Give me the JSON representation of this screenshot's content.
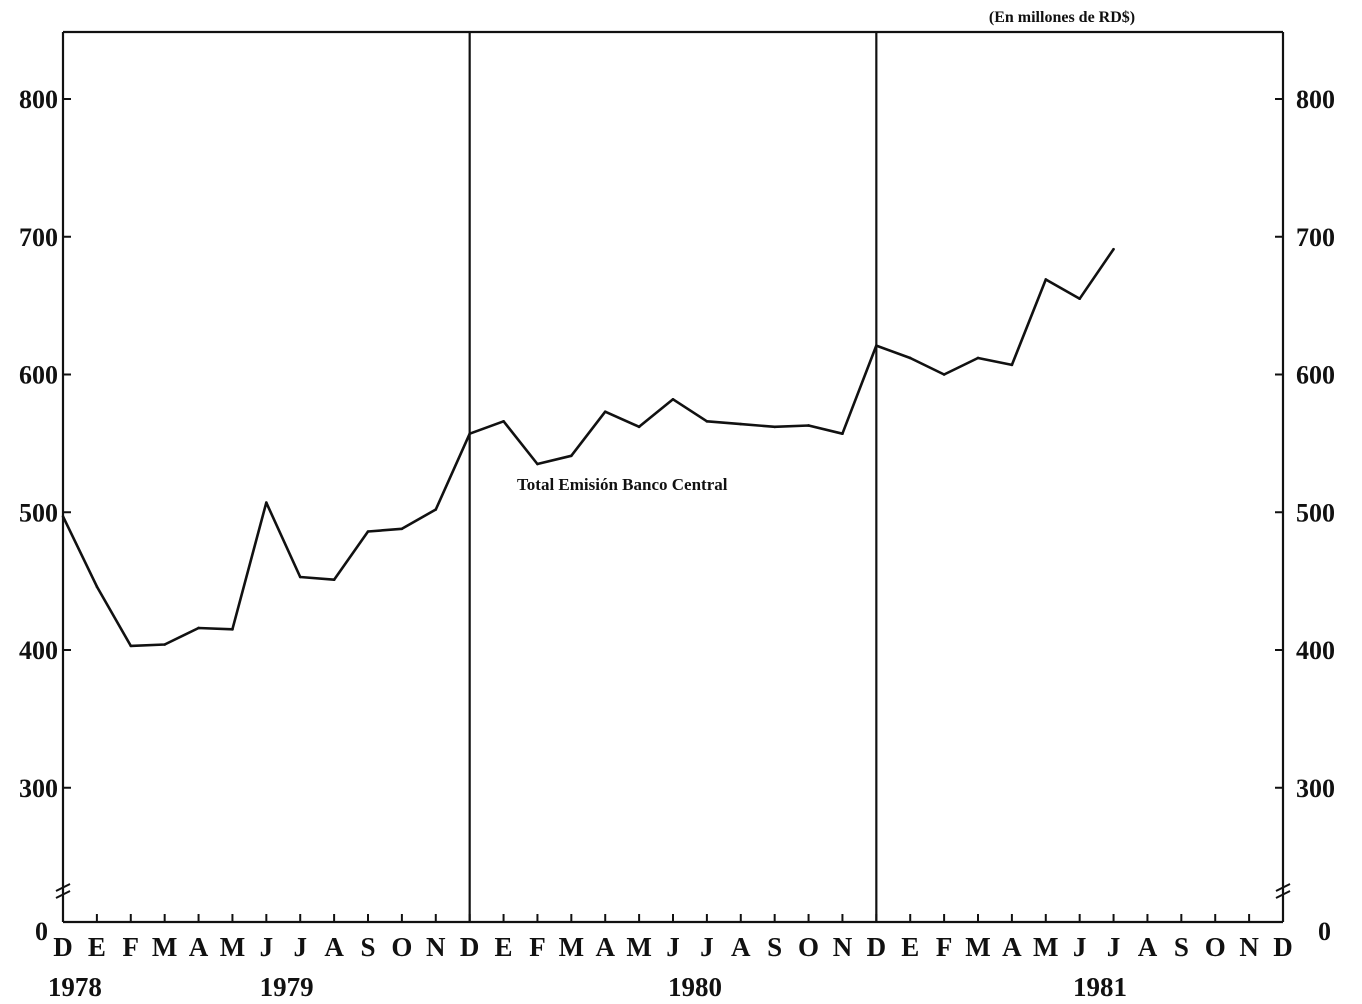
{
  "chart_data": {
    "type": "line",
    "unit_note": "(En millones de RD$)",
    "y_ticks": [
      "0",
      "300",
      "400",
      "500",
      "600",
      "700",
      "800"
    ],
    "ylim": [
      250,
      850
    ],
    "y_axis_break": true,
    "month_labels": [
      "D",
      "E",
      "F",
      "M",
      "A",
      "M",
      "J",
      "J",
      "A",
      "S",
      "O",
      "N",
      "D",
      "E",
      "F",
      "M",
      "A",
      "M",
      "J",
      "J",
      "A",
      "S",
      "O",
      "N",
      "D",
      "E",
      "F",
      "M",
      "A",
      "M",
      "J",
      "J",
      "A",
      "S",
      "O",
      "N",
      "D"
    ],
    "year_labels": [
      "1978",
      "1979",
      "1980",
      "1981"
    ],
    "dividers_at_month_index": [
      12,
      24
    ],
    "series": [
      {
        "name": "Total Emisión Banco Central",
        "values": [
          497,
          446,
          403,
          404,
          416,
          415,
          507,
          453,
          451,
          486,
          488,
          502,
          557,
          566,
          535,
          541,
          573,
          562,
          582,
          566,
          564,
          562,
          563,
          557,
          621,
          612,
          600,
          612,
          607,
          669,
          655,
          691
        ]
      }
    ],
    "grid": false
  }
}
